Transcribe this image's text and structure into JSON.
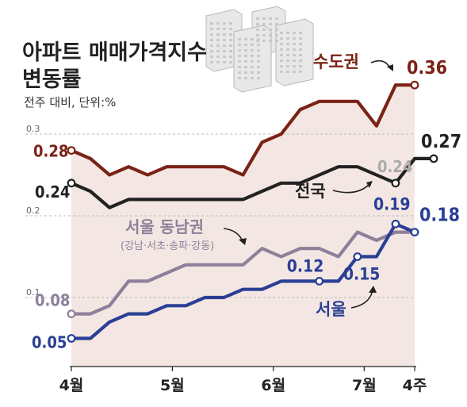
{
  "title_line1": "아파트 매매가격지수",
  "title_line2": "변동률",
  "subtitle": "전주 대비, 단위:%",
  "chart_data": {
    "type": "line",
    "title": "아파트 매매가격지수 변동률",
    "subtitle": "전주 대비, 단위:%",
    "x_tick_labels": [
      "4월",
      "5월",
      "6월",
      "7월",
      "4주"
    ],
    "x_tick_positions": [
      0,
      5,
      10,
      14.5,
      17
    ],
    "y_tick_labels": [
      "0.1",
      "0.2",
      "0.3"
    ],
    "ylim": [
      0.0,
      0.35
    ],
    "grid": "dashed horizontal",
    "series": [
      {
        "name": "수도권",
        "color": "#7a2316",
        "values": [
          0.28,
          0.27,
          0.25,
          0.26,
          0.25,
          0.26,
          0.26,
          0.26,
          0.26,
          0.25,
          0.29,
          0.3,
          0.33,
          0.34,
          0.34,
          0.34,
          0.31,
          0.36,
          0.36
        ],
        "labels": [
          {
            "index": 0,
            "text": "0.28"
          },
          {
            "index": 18,
            "text": "0.36"
          }
        ]
      },
      {
        "name": "전국",
        "color": "#222222",
        "values": [
          0.24,
          0.23,
          0.21,
          0.22,
          0.22,
          0.22,
          0.22,
          0.22,
          0.22,
          0.22,
          0.23,
          0.24,
          0.24,
          0.25,
          0.26,
          0.26,
          0.25,
          0.24,
          0.27,
          0.27
        ],
        "labels": [
          {
            "index": 0,
            "text": "0.24"
          },
          {
            "index": 17,
            "text": "0.24"
          },
          {
            "index": 19,
            "text": "0.27"
          }
        ]
      },
      {
        "name": "서울 동남권",
        "note": "(강남·서초·송파·강동)",
        "color": "#8f7f9a",
        "values": [
          0.08,
          0.08,
          0.09,
          0.12,
          0.12,
          0.13,
          0.14,
          0.14,
          0.14,
          0.14,
          0.16,
          0.15,
          0.16,
          0.16,
          0.15,
          0.18,
          0.17,
          0.18,
          0.18
        ],
        "labels": [
          {
            "index": 0,
            "text": "0.08"
          }
        ]
      },
      {
        "name": "서울",
        "color": "#2a3f95",
        "values": [
          0.05,
          0.05,
          0.07,
          0.08,
          0.08,
          0.09,
          0.09,
          0.1,
          0.1,
          0.11,
          0.11,
          0.12,
          0.12,
          0.12,
          0.12,
          0.15,
          0.15,
          0.19,
          0.18
        ],
        "labels": [
          {
            "index": 0,
            "text": "0.05"
          },
          {
            "index": 13,
            "text": "0.12"
          },
          {
            "index": 15,
            "text": "0.15"
          },
          {
            "index": 17,
            "text": "0.19"
          },
          {
            "index": 18,
            "text": "0.18"
          }
        ]
      }
    ]
  }
}
